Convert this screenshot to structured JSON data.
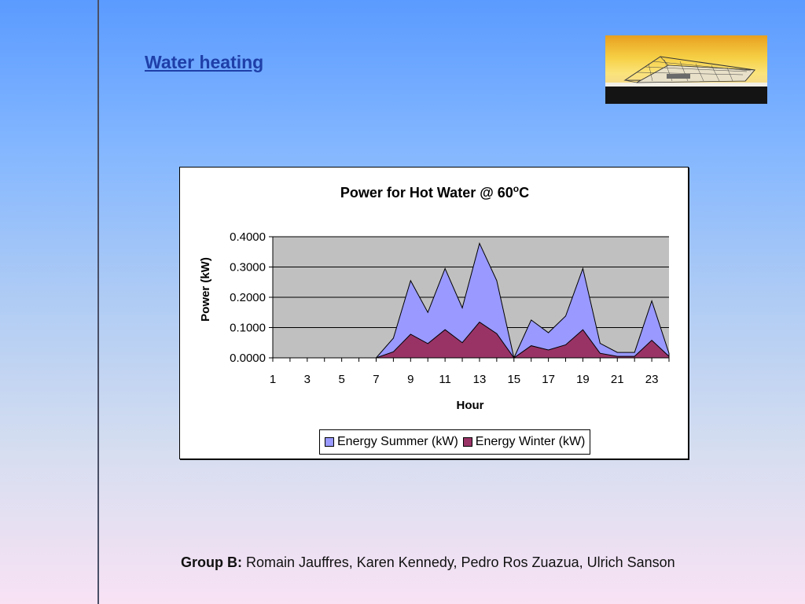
{
  "slide": {
    "title": "Water heating",
    "footer_group": "Group B:",
    "footer_names": "Romain Jauffres, Karen Kennedy, Pedro Ros Zuazua, Ulrich Sanson"
  },
  "logo": {
    "icon": "building-logo-image"
  },
  "chart_data": {
    "type": "area",
    "title": "Power for Hot Water @ 60",
    "title_sup": "o",
    "title_suffix": "C",
    "xlabel": "Hour",
    "ylabel": "Power (kW)",
    "x": [
      1,
      2,
      3,
      4,
      5,
      6,
      7,
      8,
      9,
      10,
      11,
      12,
      13,
      14,
      15,
      16,
      17,
      18,
      19,
      20,
      21,
      22,
      23,
      24
    ],
    "x_tick_labels": [
      "1",
      "3",
      "5",
      "7",
      "9",
      "11",
      "13",
      "15",
      "17",
      "19",
      "21",
      "23"
    ],
    "y_tick_labels": [
      "0.0000",
      "0.1000",
      "0.2000",
      "0.3000",
      "0.4000"
    ],
    "ylim": [
      0,
      0.4
    ],
    "grid": true,
    "legend_position": "bottom",
    "plot_background": "#c0c0c0",
    "series": [
      {
        "name": "Energy Summer (kW)",
        "color": "#9999ff",
        "values": [
          0,
          0,
          0,
          0,
          0,
          0,
          0,
          0.065,
          0.255,
          0.15,
          0.295,
          0.165,
          0.378,
          0.255,
          0,
          0.125,
          0.083,
          0.138,
          0.295,
          0.048,
          0.018,
          0.018,
          0.188,
          0.015
        ]
      },
      {
        "name": "Energy Winter (kW)",
        "color": "#993366",
        "values": [
          0,
          0,
          0,
          0,
          0,
          0,
          0,
          0.02,
          0.078,
          0.047,
          0.093,
          0.05,
          0.118,
          0.08,
          0,
          0.04,
          0.026,
          0.043,
          0.093,
          0.015,
          0.005,
          0.005,
          0.058,
          0.005
        ]
      }
    ]
  }
}
